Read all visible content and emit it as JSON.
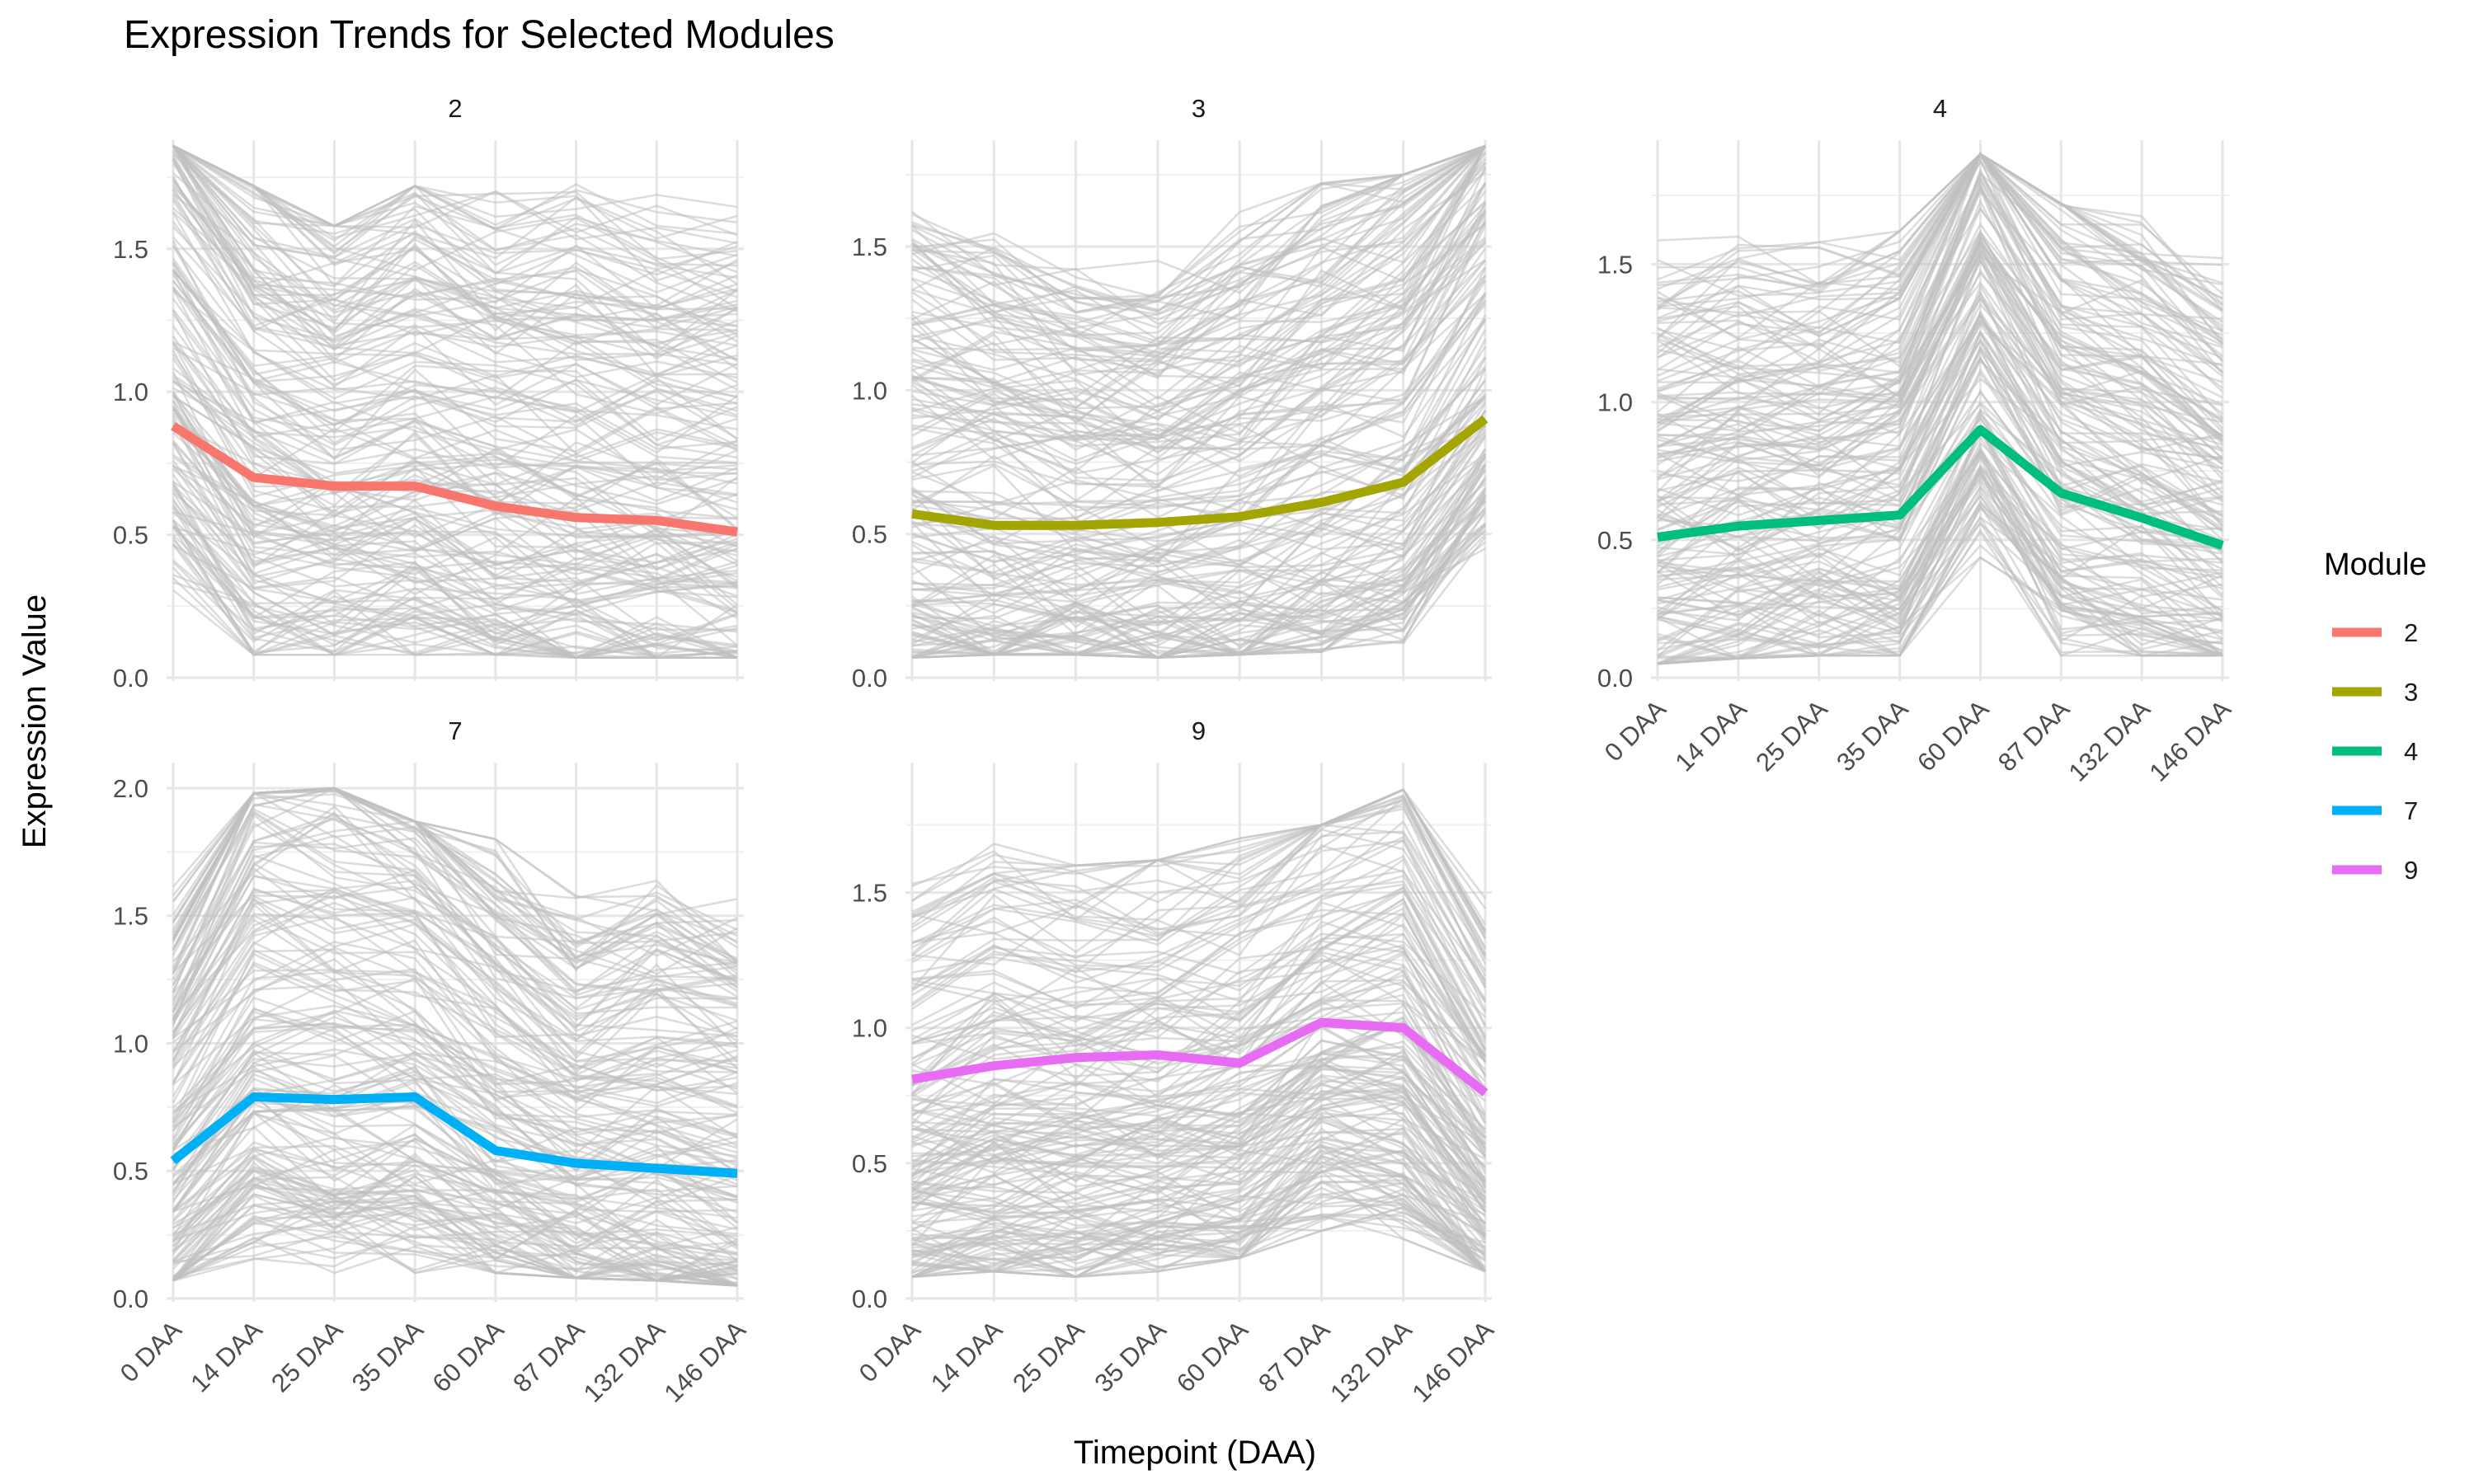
{
  "chart_data": {
    "type": "line",
    "title": "Expression Trends for Selected Modules",
    "xlabel": "Timepoint (DAA)",
    "ylabel": "Expression Value",
    "categories": [
      "0 DAA",
      "14 DAA",
      "25 DAA",
      "35 DAA",
      "60 DAA",
      "87 DAA",
      "132 DAA",
      "146 DAA"
    ],
    "legend": {
      "title": "Module",
      "position": "right"
    },
    "grid": true,
    "background_line_color": "#c0c0c0",
    "panels": [
      {
        "label": "2",
        "color": "#F8766D",
        "ylim": [
          0,
          1.88
        ],
        "yticks": [
          "0.0",
          "0.5",
          "1.0",
          "1.5"
        ],
        "mean": [
          0.88,
          0.7,
          0.67,
          0.67,
          0.6,
          0.56,
          0.55,
          0.51
        ],
        "band_low": [
          0.3,
          0.08,
          0.08,
          0.08,
          0.08,
          0.07,
          0.07,
          0.07
        ],
        "band_high": [
          1.86,
          1.72,
          1.58,
          1.72,
          1.7,
          1.78,
          1.7,
          1.72
        ]
      },
      {
        "label": "3",
        "color": "#A3A500",
        "ylim": [
          0,
          1.87
        ],
        "yticks": [
          "0.0",
          "0.5",
          "1.0",
          "1.5"
        ],
        "mean": [
          0.57,
          0.53,
          0.53,
          0.54,
          0.56,
          0.61,
          0.68,
          0.9
        ],
        "band_low": [
          0.07,
          0.08,
          0.08,
          0.07,
          0.08,
          0.09,
          0.12,
          0.35
        ],
        "band_high": [
          1.68,
          1.66,
          1.52,
          1.48,
          1.62,
          1.72,
          1.75,
          1.85
        ]
      },
      {
        "label": "4",
        "color": "#00BF7D",
        "ylim": [
          0,
          1.95
        ],
        "yticks": [
          "0.0",
          "0.5",
          "1.0",
          "1.5"
        ],
        "mean": [
          0.51,
          0.55,
          0.57,
          0.59,
          0.9,
          0.67,
          0.58,
          0.48
        ],
        "band_low": [
          0.05,
          0.07,
          0.08,
          0.08,
          0.35,
          0.08,
          0.08,
          0.08
        ],
        "band_high": [
          1.6,
          1.6,
          1.58,
          1.62,
          1.9,
          1.72,
          1.72,
          1.6
        ]
      },
      {
        "label": "7",
        "color": "#00B0F6",
        "ylim": [
          0,
          2.1
        ],
        "yticks": [
          "0.0",
          "0.5",
          "1.0",
          "1.5",
          "2.0"
        ],
        "mean": [
          0.54,
          0.79,
          0.78,
          0.79,
          0.58,
          0.53,
          0.51,
          0.49
        ],
        "band_low": [
          0.07,
          0.15,
          0.1,
          0.1,
          0.1,
          0.08,
          0.07,
          0.05
        ],
        "band_high": [
          1.65,
          1.98,
          2.0,
          1.87,
          1.8,
          1.62,
          1.75,
          1.68
        ]
      },
      {
        "label": "9",
        "color": "#E76BF3",
        "ylim": [
          0,
          1.98
        ],
        "yticks": [
          "0.0",
          "0.5",
          "1.0",
          "1.5"
        ],
        "mean": [
          0.81,
          0.86,
          0.89,
          0.9,
          0.87,
          1.02,
          1.0,
          0.76
        ],
        "band_low": [
          0.08,
          0.1,
          0.08,
          0.1,
          0.15,
          0.25,
          0.22,
          0.1
        ],
        "band_high": [
          1.58,
          1.68,
          1.6,
          1.62,
          1.7,
          1.75,
          1.88,
          1.58
        ]
      }
    ]
  }
}
